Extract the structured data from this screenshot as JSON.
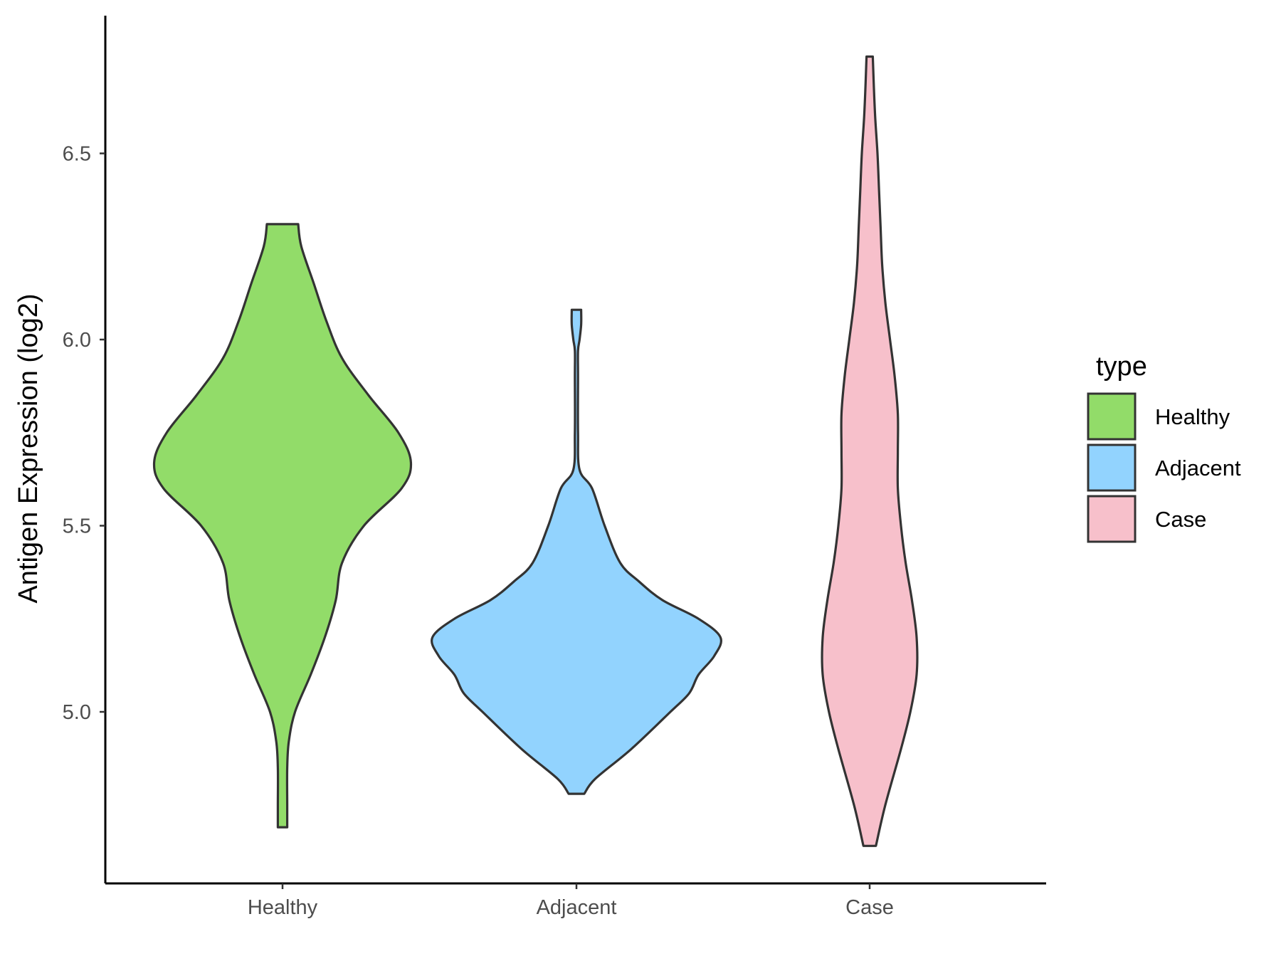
{
  "chart_data": {
    "type": "violin",
    "xlabel": "",
    "ylabel": "Antigen Expression (log2)",
    "ylim": [
      4.6,
      6.9
    ],
    "yticks": [
      "5.0",
      "5.5",
      "6.0",
      "6.5"
    ],
    "grid": false,
    "legend": {
      "title": "type",
      "position": "right"
    },
    "categories": [
      "Healthy",
      "Adjacent",
      "Case"
    ],
    "series": [
      {
        "name": "Healthy",
        "color": "#92dc69",
        "min": 4.69,
        "max": 6.31,
        "profile": [
          [
            4.69,
            0.03
          ],
          [
            4.75,
            0.03
          ],
          [
            4.85,
            0.03
          ],
          [
            4.92,
            0.04
          ],
          [
            5.0,
            0.08
          ],
          [
            5.1,
            0.18
          ],
          [
            5.2,
            0.27
          ],
          [
            5.3,
            0.34
          ],
          [
            5.4,
            0.38
          ],
          [
            5.5,
            0.52
          ],
          [
            5.6,
            0.76
          ],
          [
            5.67,
            0.82
          ],
          [
            5.75,
            0.74
          ],
          [
            5.85,
            0.55
          ],
          [
            5.95,
            0.38
          ],
          [
            6.05,
            0.28
          ],
          [
            6.15,
            0.2
          ],
          [
            6.25,
            0.12
          ],
          [
            6.31,
            0.1
          ]
        ]
      },
      {
        "name": "Adjacent",
        "color": "#92d3fe",
        "min": 4.78,
        "max": 6.08,
        "profile": [
          [
            4.78,
            0.05
          ],
          [
            4.82,
            0.12
          ],
          [
            4.9,
            0.35
          ],
          [
            5.0,
            0.6
          ],
          [
            5.05,
            0.72
          ],
          [
            5.1,
            0.78
          ],
          [
            5.15,
            0.88
          ],
          [
            5.2,
            0.92
          ],
          [
            5.25,
            0.78
          ],
          [
            5.3,
            0.55
          ],
          [
            5.35,
            0.4
          ],
          [
            5.4,
            0.28
          ],
          [
            5.5,
            0.18
          ],
          [
            5.6,
            0.1
          ],
          [
            5.65,
            0.02
          ],
          [
            5.75,
            0.01
          ],
          [
            5.9,
            0.01
          ],
          [
            5.97,
            0.01
          ],
          [
            6.0,
            0.02
          ],
          [
            6.04,
            0.03
          ],
          [
            6.08,
            0.03
          ]
        ]
      },
      {
        "name": "Case",
        "color": "#f7c0cb",
        "min": 4.64,
        "max": 6.76,
        "profile": [
          [
            4.64,
            0.04
          ],
          [
            4.75,
            0.1
          ],
          [
            4.9,
            0.2
          ],
          [
            5.0,
            0.26
          ],
          [
            5.1,
            0.3
          ],
          [
            5.2,
            0.3
          ],
          [
            5.3,
            0.27
          ],
          [
            5.4,
            0.23
          ],
          [
            5.5,
            0.2
          ],
          [
            5.6,
            0.18
          ],
          [
            5.7,
            0.18
          ],
          [
            5.8,
            0.18
          ],
          [
            5.9,
            0.16
          ],
          [
            6.0,
            0.13
          ],
          [
            6.1,
            0.1
          ],
          [
            6.2,
            0.08
          ],
          [
            6.3,
            0.07
          ],
          [
            6.4,
            0.06
          ],
          [
            6.5,
            0.05
          ],
          [
            6.6,
            0.035
          ],
          [
            6.7,
            0.025
          ],
          [
            6.76,
            0.02
          ]
        ]
      }
    ]
  }
}
